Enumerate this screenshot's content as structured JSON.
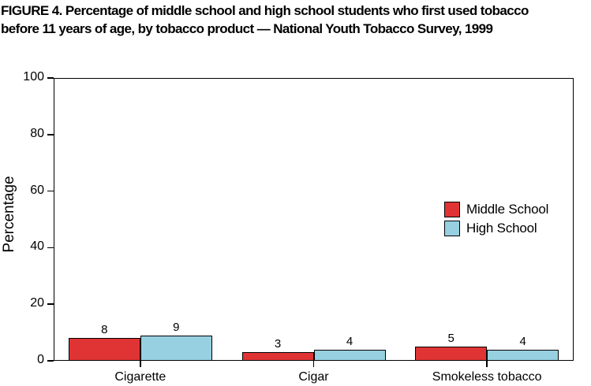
{
  "figure": {
    "title_line1": "FIGURE 4. Percentage of middle school and high school students who first used tobacco",
    "title_line2": "before 11 years of age, by tobacco product — National Youth Tobacco Survey, 1999"
  },
  "chart_data": {
    "type": "bar",
    "title": "FIGURE 4. Percentage of middle school and high school students who first used tobacco before 11 years of age, by tobacco product — National Youth Tobacco Survey, 1999",
    "categories": [
      "Cigarette",
      "Cigar",
      "Smokeless tobacco"
    ],
    "series": [
      {
        "name": "Middle School",
        "color": "#e03434",
        "values": [
          8,
          3,
          5
        ]
      },
      {
        "name": "High School",
        "color": "#97d0e0",
        "values": [
          9,
          4,
          4
        ]
      }
    ],
    "xlabel": "",
    "ylabel": "Percentage",
    "ylim": [
      0,
      100
    ],
    "yticks": [
      0,
      20,
      40,
      60,
      80,
      100
    ],
    "bar_value_labels": true,
    "legend_position": "middle-right",
    "grid": false,
    "axis_color": "#000000",
    "background_color": "#ffffff"
  }
}
